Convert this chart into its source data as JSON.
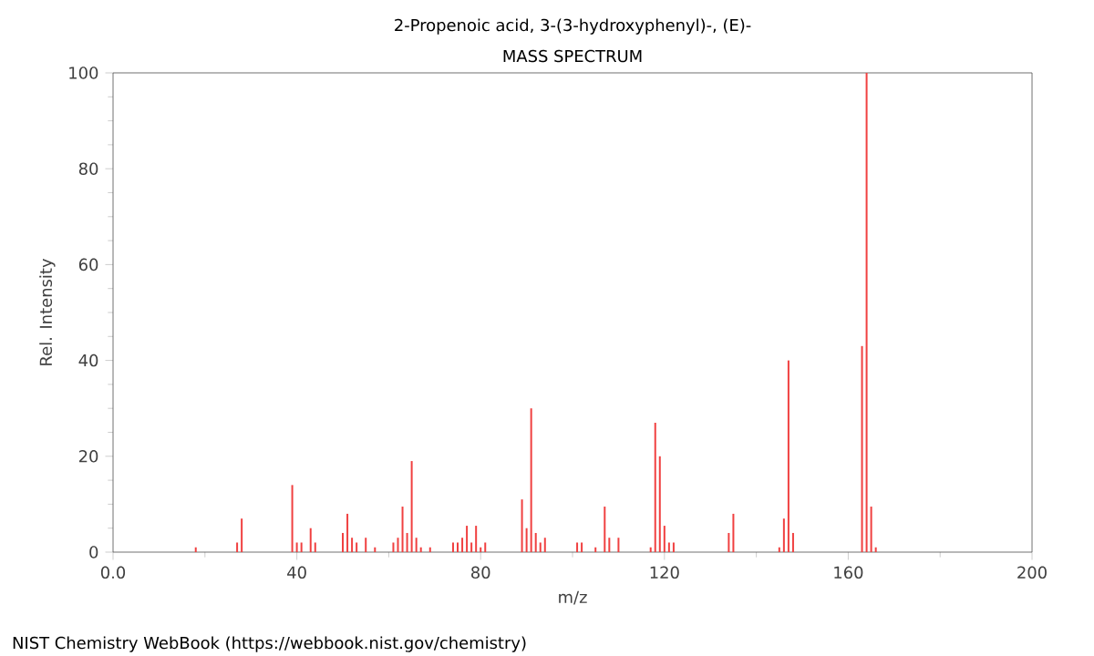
{
  "chart_data": {
    "type": "bar",
    "title": "2-Propenoic acid, 3-(3-hydroxyphenyl)-, (E)-",
    "subtitle": "MASS SPECTRUM",
    "xlabel": "m/z",
    "ylabel": "Rel. Intensity",
    "x": [
      18,
      27,
      28,
      39,
      40,
      41,
      43,
      44,
      50,
      51,
      52,
      53,
      55,
      57,
      61,
      62,
      63,
      64,
      65,
      66,
      67,
      69,
      74,
      75,
      76,
      77,
      78,
      79,
      80,
      81,
      89,
      90,
      91,
      92,
      93,
      94,
      101,
      102,
      105,
      107,
      108,
      110,
      117,
      118,
      119,
      120,
      121,
      122,
      134,
      135,
      145,
      146,
      147,
      148,
      163,
      164,
      165,
      166
    ],
    "values": [
      1,
      2,
      7,
      14,
      2,
      2,
      5,
      2,
      4,
      8,
      3,
      2,
      3,
      1,
      2,
      3,
      9.5,
      4,
      19,
      3,
      1,
      1,
      2,
      2,
      3,
      5.5,
      2,
      5.5,
      1,
      2,
      11,
      5,
      30,
      4,
      2,
      3,
      2,
      2,
      1,
      9.5,
      3,
      3,
      1,
      27,
      20,
      5.5,
      2,
      2,
      4,
      8,
      1,
      7,
      40,
      4,
      43,
      100,
      9.5,
      1
    ],
    "color": "#f04040",
    "xlim": [
      0,
      200
    ],
    "ylim": [
      0,
      100
    ],
    "xticks": [
      {
        "value": 0,
        "label": "0.0"
      },
      40,
      80,
      120,
      160,
      200
    ],
    "yticks": [
      0,
      20,
      40,
      60,
      80,
      100
    ],
    "grid": false,
    "annotations": [
      "NIST Chemistry WebBook (https://webbook.nist.gov/chemistry)"
    ]
  }
}
